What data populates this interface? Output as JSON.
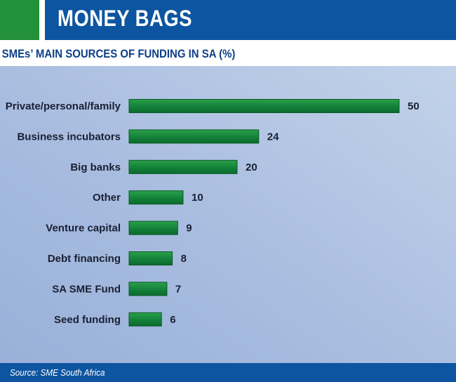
{
  "header": {
    "title": "MONEY BAGS"
  },
  "colors": {
    "accent_green": "#23913a",
    "brand_blue": "#0d55a0",
    "bar_green": "#13813a"
  },
  "chart_data": {
    "type": "bar",
    "orientation": "horizontal",
    "title": "SMEs’ MAIN SOURCES OF FUNDING IN SA (%)",
    "categories": [
      "Private/personal/family",
      "Business incubators",
      "Big banks",
      "Other",
      "Venture capital",
      "Debt financing",
      "SA SME Fund",
      "Seed funding"
    ],
    "values": [
      50,
      24,
      20,
      10,
      9,
      8,
      7,
      6
    ],
    "xlim": [
      0,
      50
    ],
    "grid": false,
    "legend": "none"
  },
  "footer": {
    "source": "Source: SME South Africa"
  }
}
